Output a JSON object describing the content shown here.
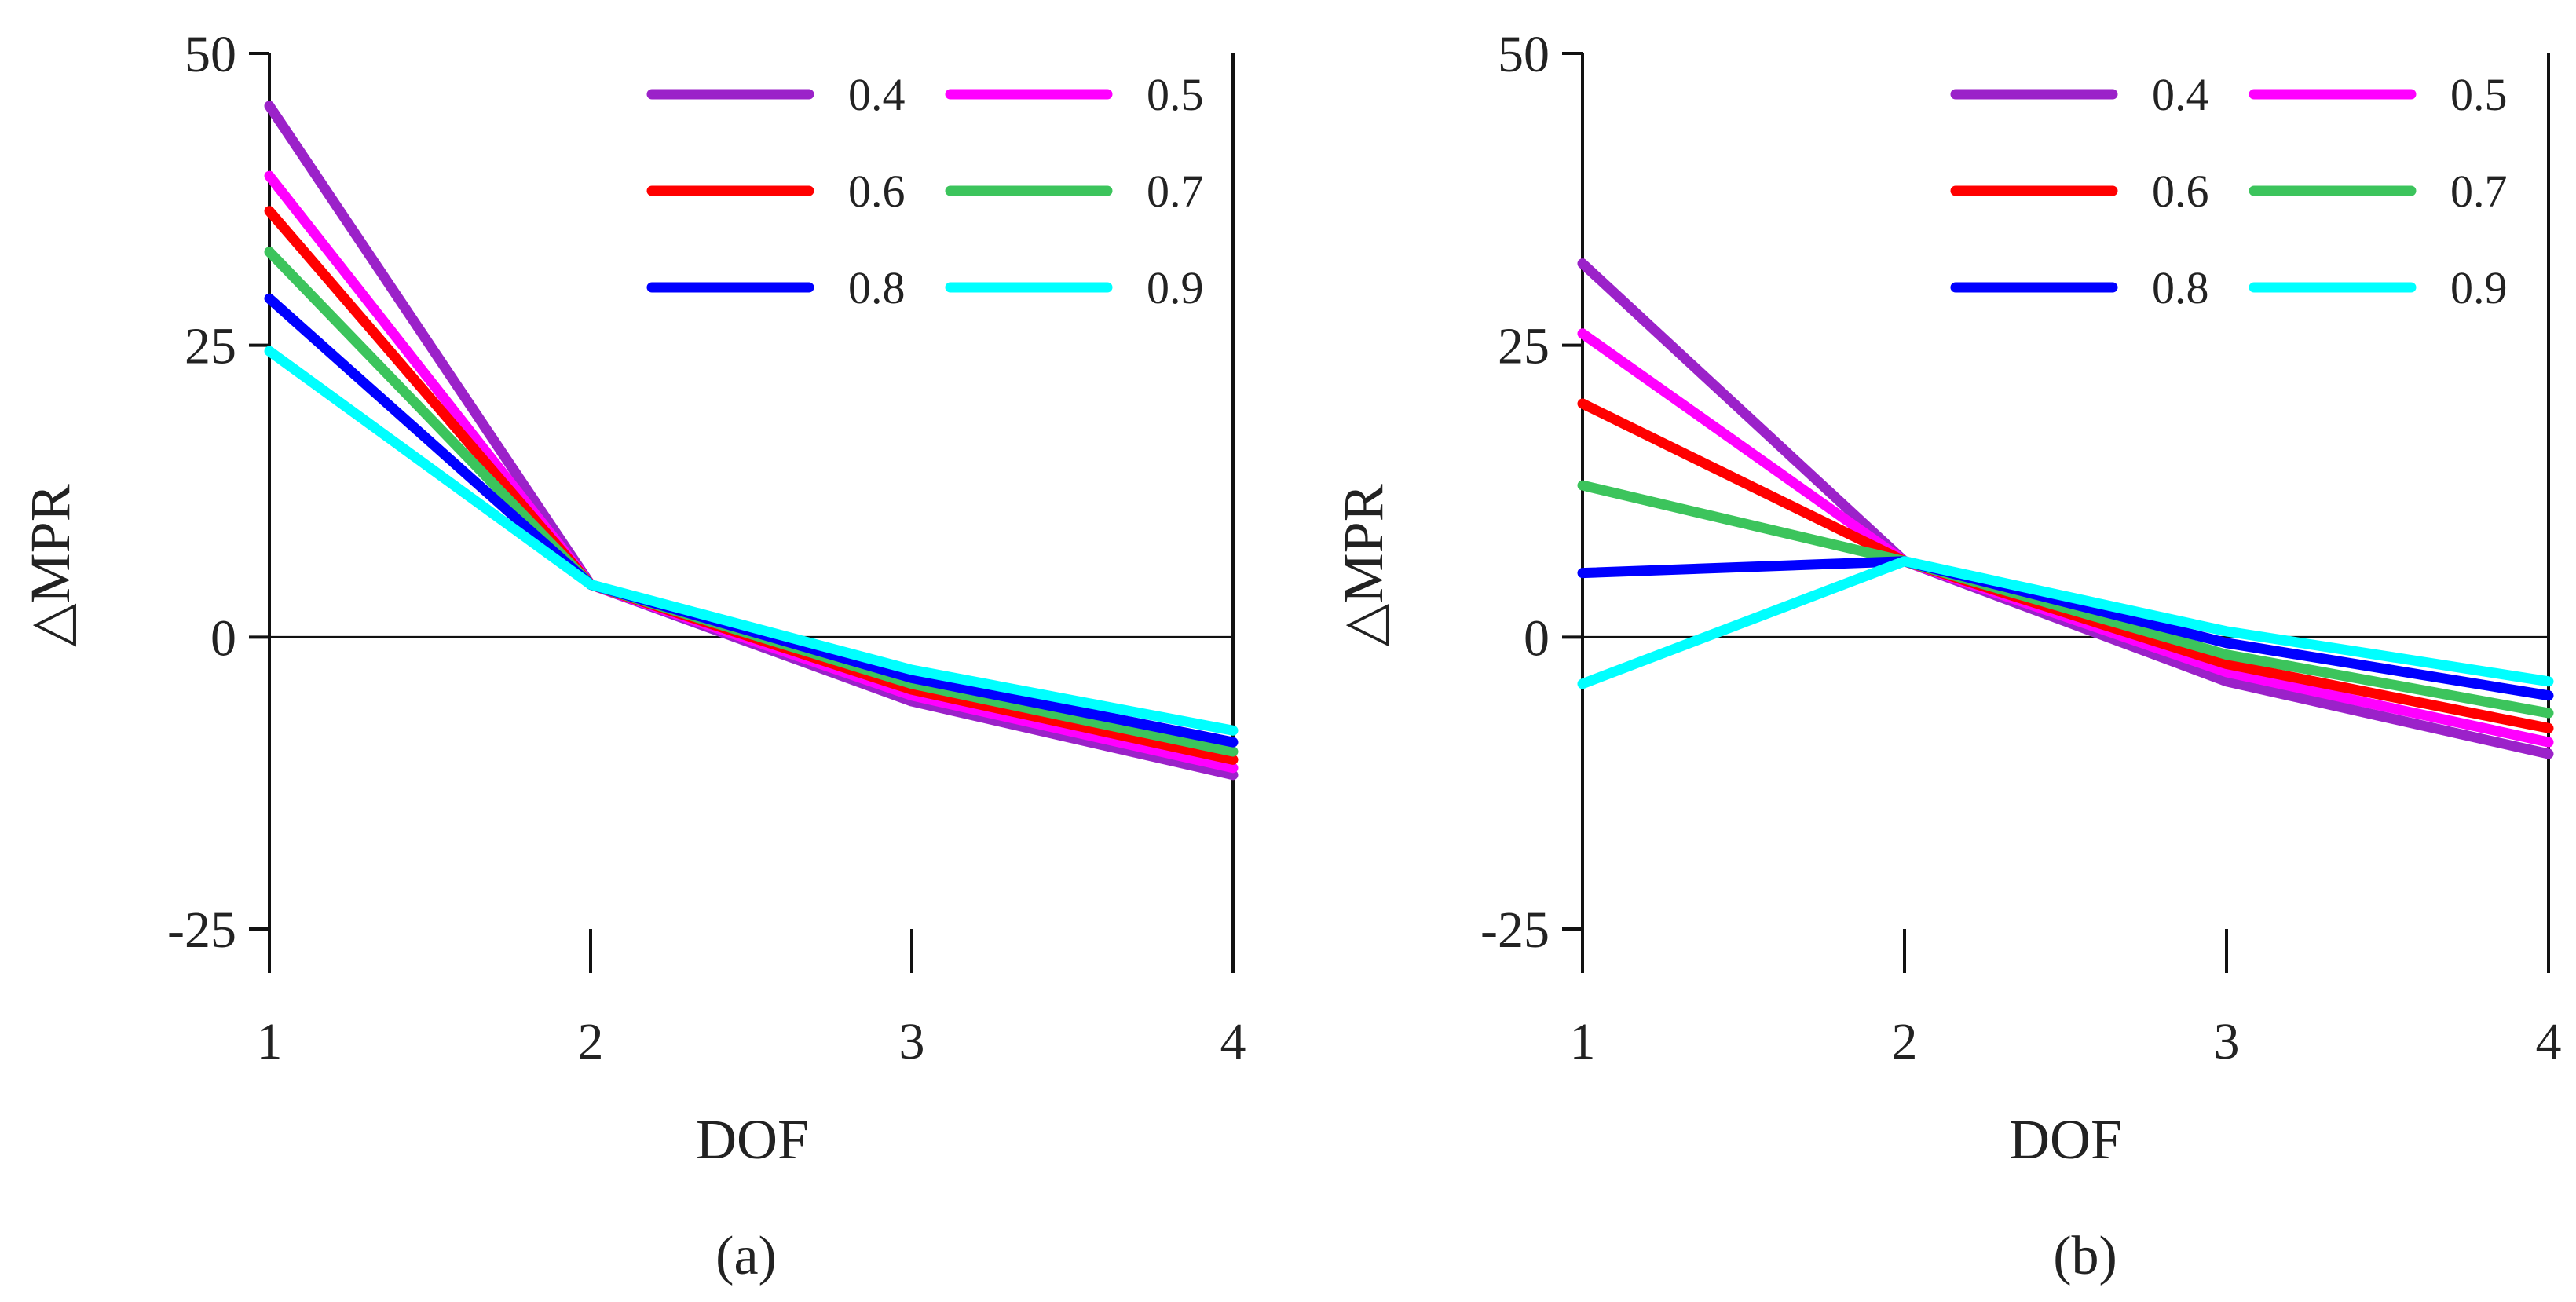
{
  "chart_data": [
    {
      "type": "line",
      "caption": "(a)",
      "xlabel": "DOF",
      "ylabel": "△MPR",
      "x": [
        1,
        2,
        3,
        4
      ],
      "xticks": [
        "1",
        "2",
        "3",
        "4"
      ],
      "yticks": [
        "50",
        "25",
        "0",
        "-25"
      ],
      "ylim": [
        -25,
        50
      ],
      "legend_position": "top-right",
      "series": [
        {
          "name": "0.4",
          "color": "#9b22c9",
          "values": [
            45.5,
            4.5,
            -5.5,
            -11.8
          ]
        },
        {
          "name": "0.5",
          "color": "#ff00ff",
          "values": [
            39.5,
            4.5,
            -5.0,
            -11.2
          ]
        },
        {
          "name": "0.6",
          "color": "#ff0000",
          "values": [
            36.5,
            4.5,
            -4.5,
            -10.5
          ]
        },
        {
          "name": "0.7",
          "color": "#3cc45c",
          "values": [
            33.0,
            4.5,
            -4.0,
            -9.8
          ]
        },
        {
          "name": "0.8",
          "color": "#0000ff",
          "values": [
            29.0,
            4.5,
            -3.5,
            -9.0
          ]
        },
        {
          "name": "0.9",
          "color": "#00ffff",
          "values": [
            24.5,
            4.5,
            -2.8,
            -8.0
          ]
        }
      ]
    },
    {
      "type": "line",
      "caption": "(b)",
      "xlabel": "DOF",
      "ylabel": "△MPR",
      "x": [
        1,
        2,
        3,
        4
      ],
      "xticks": [
        "1",
        "2",
        "3",
        "4"
      ],
      "yticks": [
        "50",
        "25",
        "0",
        "-25"
      ],
      "ylim": [
        -25,
        50
      ],
      "legend_position": "top-right",
      "series": [
        {
          "name": "0.4",
          "color": "#9b22c9",
          "values": [
            32.0,
            6.5,
            -3.8,
            -10.0
          ]
        },
        {
          "name": "0.5",
          "color": "#ff00ff",
          "values": [
            26.0,
            6.5,
            -3.0,
            -9.0
          ]
        },
        {
          "name": "0.6",
          "color": "#ff0000",
          "values": [
            20.0,
            6.5,
            -2.3,
            -7.8
          ]
        },
        {
          "name": "0.7",
          "color": "#3cc45c",
          "values": [
            13.0,
            6.5,
            -1.5,
            -6.5
          ]
        },
        {
          "name": "0.8",
          "color": "#0000ff",
          "values": [
            5.5,
            6.5,
            -0.5,
            -5.0
          ]
        },
        {
          "name": "0.9",
          "color": "#00ffff",
          "values": [
            -4.0,
            6.5,
            0.5,
            -3.8
          ]
        }
      ]
    }
  ]
}
